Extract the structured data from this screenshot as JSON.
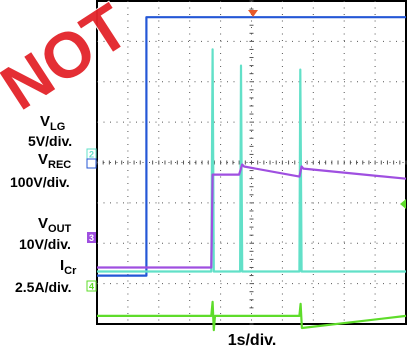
{
  "watermark": "NOT",
  "colors": {
    "background": "#ffffff",
    "frame": "#000000",
    "grid": "#555555",
    "watermark": "#e3262c",
    "trigger_marker": "#e85a2a"
  },
  "chart_data": {
    "type": "line",
    "title": "",
    "xlabel": "1s/div.",
    "grid": true,
    "x_divisions": 10,
    "y_divisions": 8,
    "x_unit": "s",
    "x_per_div": 1,
    "xlim": [
      0,
      10
    ],
    "series": [
      {
        "key": "vlg",
        "label": "V",
        "subscript": "LG",
        "scale": "5V/div.",
        "color": "#2457d6",
        "marker_text": "",
        "x": [
          0,
          1.6,
          1.6,
          10
        ],
        "y": [
          1.2,
          1.2,
          7.6,
          7.6
        ]
      },
      {
        "key": "vrec",
        "label": "V",
        "subscript": "REC",
        "scale": "100V/div.",
        "color": "#62e0c8",
        "marker_text": "2",
        "x": [
          0,
          3.7,
          3.74,
          3.78,
          3.82,
          4.63,
          4.66,
          4.7,
          6.55,
          6.58,
          6.62,
          10
        ],
        "y": [
          1.3,
          1.3,
          6.8,
          1.3,
          1.3,
          1.3,
          6.4,
          1.3,
          1.3,
          6.3,
          1.3,
          1.3
        ]
      },
      {
        "key": "vout",
        "label": "V",
        "subscript": "OUT",
        "scale": "10V/div.",
        "color": "#9f4fe0",
        "marker_text": "3",
        "x": [
          0,
          3.7,
          3.74,
          4.6,
          4.7,
          4.76,
          6.55,
          6.62,
          6.68,
          10
        ],
        "y": [
          1.4,
          1.4,
          3.7,
          3.7,
          3.95,
          3.9,
          3.65,
          3.9,
          3.85,
          3.6
        ]
      },
      {
        "key": "icr",
        "label": "I",
        "subscript": "Cr",
        "scale": "2.5A/div.",
        "color": "#5edc2a",
        "marker_text": "4",
        "x": [
          0,
          3.7,
          3.74,
          3.78,
          3.82,
          6.55,
          6.59,
          6.63,
          10
        ],
        "y": [
          0.2,
          0.2,
          0.55,
          -0.15,
          0.2,
          0.2,
          0.5,
          -0.1,
          0.2
        ]
      }
    ]
  }
}
